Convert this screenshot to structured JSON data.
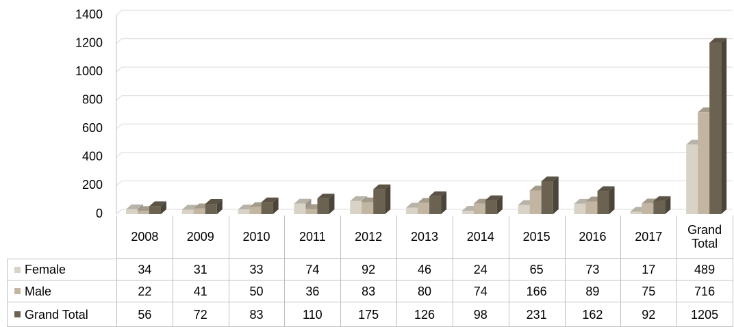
{
  "chart_data": {
    "type": "bar",
    "categories": [
      "2008",
      "2009",
      "2010",
      "2011",
      "2012",
      "2013",
      "2014",
      "2015",
      "2016",
      "2017",
      "Grand Total"
    ],
    "series": [
      {
        "name": "Female",
        "color": "#d9d3c7",
        "values": [
          34,
          31,
          33,
          74,
          92,
          46,
          24,
          65,
          73,
          17,
          489
        ]
      },
      {
        "name": "Male",
        "color": "#c2b6a2",
        "values": [
          22,
          41,
          50,
          36,
          83,
          80,
          74,
          166,
          89,
          75,
          716
        ]
      },
      {
        "name": "Grand Total",
        "color": "#6b6252",
        "values": [
          56,
          72,
          83,
          110,
          175,
          126,
          98,
          231,
          162,
          92,
          1205
        ]
      }
    ],
    "ylim": [
      0,
      1400
    ],
    "yticks": [
      0,
      200,
      400,
      600,
      800,
      1000,
      1200,
      1400
    ],
    "grid": true
  }
}
